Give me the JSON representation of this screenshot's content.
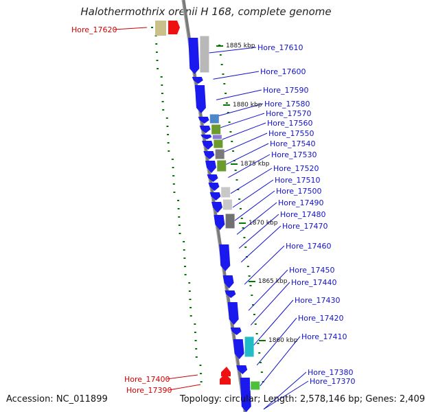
{
  "title": "Halothermothrix orenii H 168, complete genome",
  "accession": "Accession: NC_011899",
  "topology": "Topology: circular; Length: 2,578,146 bp; Genes: 2,409",
  "colors": {
    "forward_gene": "#1a1aee",
    "reverse_gene": "#ee1111",
    "backbone": "#808080",
    "label_forward": "#1111cc",
    "label_reverse": "#cc0000",
    "gc_marks": "#007700"
  },
  "scale_labels": [
    "1885 kbp",
    "1880 kbp",
    "1875 kbp",
    "1870 kbp",
    "1865 kbp",
    "1860 kbp"
  ],
  "genes_forward": [
    "Hore_17610",
    "Hore_17600",
    "Hore_17590",
    "Hore_17580",
    "Hore_17570",
    "Hore_17560",
    "Hore_17550",
    "Hore_17540",
    "Hore_17530",
    "Hore_17520",
    "Hore_17510",
    "Hore_17500",
    "Hore_17490",
    "Hore_17480",
    "Hore_17470",
    "Hore_17460",
    "Hore_17450",
    "Hore_17440",
    "Hore_17430",
    "Hore_17420",
    "Hore_17410",
    "Hore_17380",
    "Hore_17370"
  ],
  "genes_reverse": [
    "Hore_17620",
    "Hore_17400",
    "Hore_17390"
  ]
}
